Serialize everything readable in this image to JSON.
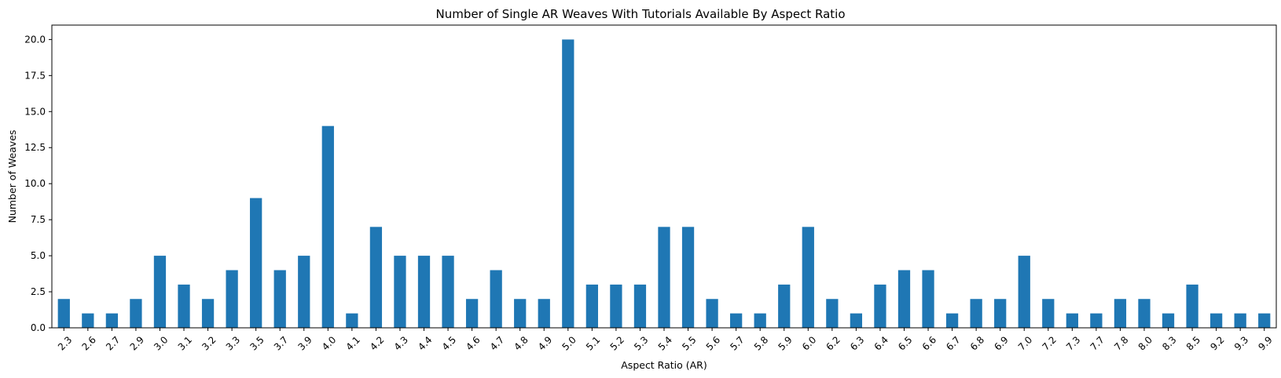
{
  "chart_data": {
    "type": "bar",
    "title": "Number of Single AR Weaves With Tutorials Available By Aspect Ratio",
    "xlabel": "Aspect Ratio (AR)",
    "ylabel": "Number of Weaves",
    "ylim": [
      0,
      21
    ],
    "yticks": [
      "0.0",
      "2.5",
      "5.0",
      "7.5",
      "10.0",
      "12.5",
      "15.0",
      "17.5",
      "20.0"
    ],
    "grid": false,
    "bar_color": "#1f77b4",
    "categories": [
      "2.3",
      "2.6",
      "2.7",
      "2.9",
      "3.0",
      "3.1",
      "3.2",
      "3.3",
      "3.5",
      "3.7",
      "3.9",
      "4.0",
      "4.1",
      "4.2",
      "4.3",
      "4.4",
      "4.5",
      "4.6",
      "4.7",
      "4.8",
      "4.9",
      "5.0",
      "5.1",
      "5.2",
      "5.3",
      "5.4",
      "5.5",
      "5.6",
      "5.7",
      "5.8",
      "5.9",
      "6.0",
      "6.2",
      "6.3",
      "6.4",
      "6.5",
      "6.6",
      "6.7",
      "6.8",
      "6.9",
      "7.0",
      "7.2",
      "7.3",
      "7.7",
      "7.8",
      "8.0",
      "8.3",
      "8.5",
      "9.2",
      "9.3",
      "9.9"
    ],
    "values": [
      2,
      1,
      1,
      2,
      5,
      3,
      2,
      4,
      9,
      4,
      5,
      14,
      1,
      7,
      5,
      5,
      5,
      2,
      4,
      2,
      2,
      20,
      3,
      3,
      3,
      7,
      7,
      2,
      1,
      1,
      3,
      7,
      2,
      1,
      3,
      4,
      4,
      1,
      2,
      2,
      5,
      2,
      1,
      1,
      2,
      2,
      1,
      3,
      1,
      1,
      1
    ]
  }
}
